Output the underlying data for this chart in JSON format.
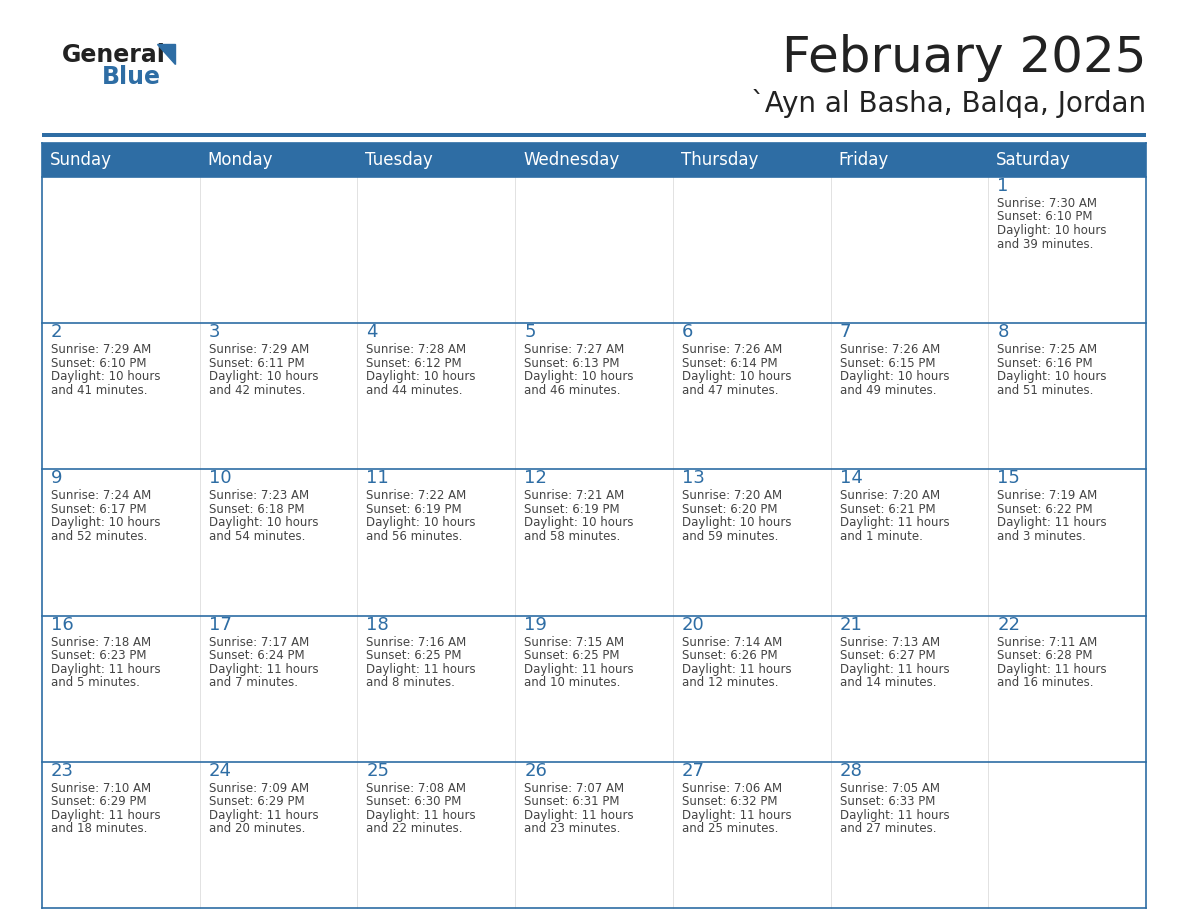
{
  "title": "February 2025",
  "subtitle": "`Ayn al Basha, Balqa, Jordan",
  "days_of_week": [
    "Sunday",
    "Monday",
    "Tuesday",
    "Wednesday",
    "Thursday",
    "Friday",
    "Saturday"
  ],
  "header_bg": "#2e6da4",
  "header_text_color": "#ffffff",
  "border_color": "#2e6da4",
  "cell_line_color": "#aaaaaa",
  "day_number_color": "#2e6da4",
  "text_color": "#444444",
  "bg_color": "#ffffff",
  "calendar_data": [
    [
      null,
      null,
      null,
      null,
      null,
      null,
      {
        "day": 1,
        "sunrise": "7:30 AM",
        "sunset": "6:10 PM",
        "daylight": "10 hours",
        "daylight2": "and 39 minutes."
      }
    ],
    [
      {
        "day": 2,
        "sunrise": "7:29 AM",
        "sunset": "6:10 PM",
        "daylight": "10 hours",
        "daylight2": "and 41 minutes."
      },
      {
        "day": 3,
        "sunrise": "7:29 AM",
        "sunset": "6:11 PM",
        "daylight": "10 hours",
        "daylight2": "and 42 minutes."
      },
      {
        "day": 4,
        "sunrise": "7:28 AM",
        "sunset": "6:12 PM",
        "daylight": "10 hours",
        "daylight2": "and 44 minutes."
      },
      {
        "day": 5,
        "sunrise": "7:27 AM",
        "sunset": "6:13 PM",
        "daylight": "10 hours",
        "daylight2": "and 46 minutes."
      },
      {
        "day": 6,
        "sunrise": "7:26 AM",
        "sunset": "6:14 PM",
        "daylight": "10 hours",
        "daylight2": "and 47 minutes."
      },
      {
        "day": 7,
        "sunrise": "7:26 AM",
        "sunset": "6:15 PM",
        "daylight": "10 hours",
        "daylight2": "and 49 minutes."
      },
      {
        "day": 8,
        "sunrise": "7:25 AM",
        "sunset": "6:16 PM",
        "daylight": "10 hours",
        "daylight2": "and 51 minutes."
      }
    ],
    [
      {
        "day": 9,
        "sunrise": "7:24 AM",
        "sunset": "6:17 PM",
        "daylight": "10 hours",
        "daylight2": "and 52 minutes."
      },
      {
        "day": 10,
        "sunrise": "7:23 AM",
        "sunset": "6:18 PM",
        "daylight": "10 hours",
        "daylight2": "and 54 minutes."
      },
      {
        "day": 11,
        "sunrise": "7:22 AM",
        "sunset": "6:19 PM",
        "daylight": "10 hours",
        "daylight2": "and 56 minutes."
      },
      {
        "day": 12,
        "sunrise": "7:21 AM",
        "sunset": "6:19 PM",
        "daylight": "10 hours",
        "daylight2": "and 58 minutes."
      },
      {
        "day": 13,
        "sunrise": "7:20 AM",
        "sunset": "6:20 PM",
        "daylight": "10 hours",
        "daylight2": "and 59 minutes."
      },
      {
        "day": 14,
        "sunrise": "7:20 AM",
        "sunset": "6:21 PM",
        "daylight": "11 hours",
        "daylight2": "and 1 minute."
      },
      {
        "day": 15,
        "sunrise": "7:19 AM",
        "sunset": "6:22 PM",
        "daylight": "11 hours",
        "daylight2": "and 3 minutes."
      }
    ],
    [
      {
        "day": 16,
        "sunrise": "7:18 AM",
        "sunset": "6:23 PM",
        "daylight": "11 hours",
        "daylight2": "and 5 minutes."
      },
      {
        "day": 17,
        "sunrise": "7:17 AM",
        "sunset": "6:24 PM",
        "daylight": "11 hours",
        "daylight2": "and 7 minutes."
      },
      {
        "day": 18,
        "sunrise": "7:16 AM",
        "sunset": "6:25 PM",
        "daylight": "11 hours",
        "daylight2": "and 8 minutes."
      },
      {
        "day": 19,
        "sunrise": "7:15 AM",
        "sunset": "6:25 PM",
        "daylight": "11 hours",
        "daylight2": "and 10 minutes."
      },
      {
        "day": 20,
        "sunrise": "7:14 AM",
        "sunset": "6:26 PM",
        "daylight": "11 hours",
        "daylight2": "and 12 minutes."
      },
      {
        "day": 21,
        "sunrise": "7:13 AM",
        "sunset": "6:27 PM",
        "daylight": "11 hours",
        "daylight2": "and 14 minutes."
      },
      {
        "day": 22,
        "sunrise": "7:11 AM",
        "sunset": "6:28 PM",
        "daylight": "11 hours",
        "daylight2": "and 16 minutes."
      }
    ],
    [
      {
        "day": 23,
        "sunrise": "7:10 AM",
        "sunset": "6:29 PM",
        "daylight": "11 hours",
        "daylight2": "and 18 minutes."
      },
      {
        "day": 24,
        "sunrise": "7:09 AM",
        "sunset": "6:29 PM",
        "daylight": "11 hours",
        "daylight2": "and 20 minutes."
      },
      {
        "day": 25,
        "sunrise": "7:08 AM",
        "sunset": "6:30 PM",
        "daylight": "11 hours",
        "daylight2": "and 22 minutes."
      },
      {
        "day": 26,
        "sunrise": "7:07 AM",
        "sunset": "6:31 PM",
        "daylight": "11 hours",
        "daylight2": "and 23 minutes."
      },
      {
        "day": 27,
        "sunrise": "7:06 AM",
        "sunset": "6:32 PM",
        "daylight": "11 hours",
        "daylight2": "and 25 minutes."
      },
      {
        "day": 28,
        "sunrise": "7:05 AM",
        "sunset": "6:33 PM",
        "daylight": "11 hours",
        "daylight2": "and 27 minutes."
      },
      null
    ]
  ]
}
